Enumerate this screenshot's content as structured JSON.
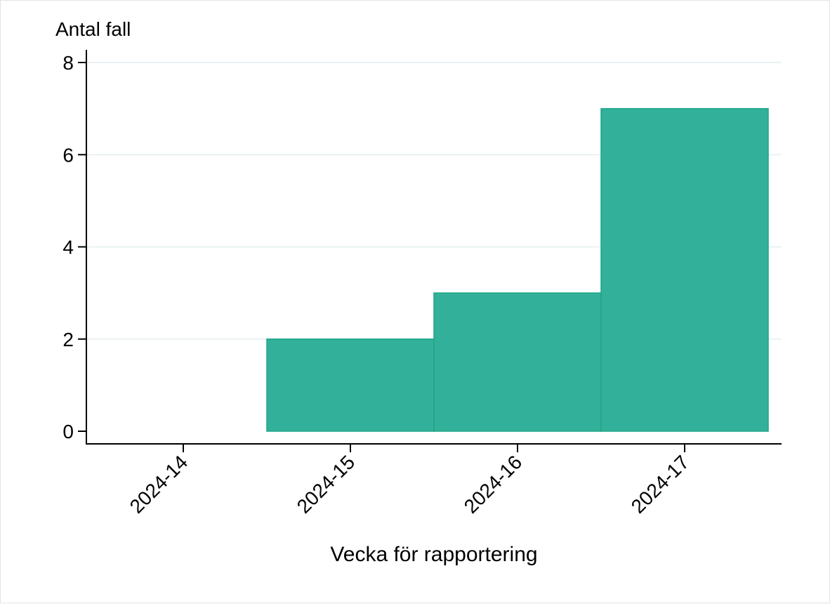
{
  "chart_data": {
    "type": "bar",
    "title": "",
    "ylabel": "Antal fall",
    "xlabel": "Vecka för rapportering",
    "categories": [
      "2024-14",
      "2024-15",
      "2024-16",
      "2024-17"
    ],
    "values": [
      0,
      2,
      3,
      7
    ],
    "ylim": [
      0,
      8
    ],
    "yticks": [
      0,
      2,
      4,
      6,
      8
    ],
    "grid": true,
    "legend": "none",
    "colors": {
      "bar_fill": "#33b09a",
      "bar_stroke": "#1ea689",
      "grid": "#eaf2f3",
      "axis": "#000000"
    }
  }
}
